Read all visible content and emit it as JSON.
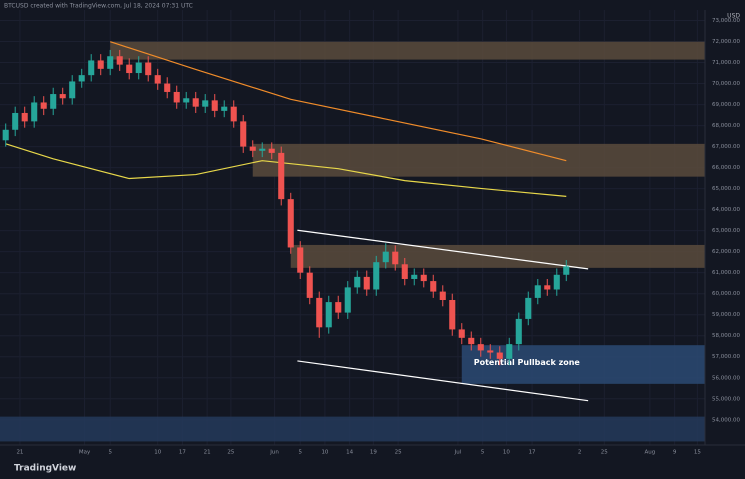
{
  "header": "BTCUSD created with TradingView.com, Jul 18, 2024 07:31 UTC",
  "footer": "TradingView",
  "chart_data": {
    "type": "candlestick",
    "currency": "USD",
    "up_color": "#26a69a",
    "down_color": "#ef5350",
    "open": [
      67300,
      67800,
      68600,
      68200,
      69100,
      68800,
      69500,
      69300,
      70100,
      70400,
      71100,
      70700,
      71300,
      70900,
      70500,
      71000,
      70400,
      70000,
      69600,
      69100,
      69300,
      68900,
      69200,
      68700,
      68900,
      68200,
      67000,
      66800,
      66900,
      66700,
      64500,
      62200,
      61000,
      59800,
      58400,
      59600,
      59100,
      60300,
      60800,
      60200,
      61500,
      62000,
      61400,
      60700,
      60900,
      60600,
      60100,
      59700,
      58300,
      57900,
      57600,
      57300,
      57200,
      56900,
      57600,
      58800,
      59800,
      60400,
      60200,
      60900
    ],
    "high": [
      68100,
      68900,
      68900,
      69400,
      69400,
      69800,
      69800,
      70400,
      70700,
      71400,
      71400,
      71600,
      71600,
      71200,
      71300,
      71300,
      70700,
      70300,
      69900,
      69600,
      69600,
      69500,
      69500,
      69200,
      69200,
      68500,
      67300,
      67200,
      67200,
      67000,
      64800,
      62500,
      61300,
      60100,
      59900,
      59900,
      60600,
      61100,
      61100,
      61800,
      62400,
      62300,
      61700,
      61200,
      61200,
      60900,
      60400,
      60000,
      58600,
      58200,
      57900,
      57600,
      57500,
      57900,
      59100,
      60100,
      60700,
      60700,
      61200,
      61600
    ],
    "low": [
      67000,
      67500,
      67900,
      67900,
      68500,
      68500,
      69000,
      69000,
      69800,
      70100,
      70400,
      70400,
      70600,
      70200,
      70200,
      70100,
      69700,
      69300,
      68800,
      68800,
      68600,
      68600,
      68400,
      68400,
      67900,
      66700,
      66500,
      66500,
      66400,
      64200,
      61900,
      60700,
      59500,
      57900,
      58100,
      58800,
      58800,
      60000,
      59900,
      59900,
      61200,
      61100,
      60400,
      60400,
      60300,
      59800,
      59400,
      58000,
      57600,
      57300,
      57000,
      56900,
      56600,
      56600,
      57300,
      58500,
      59500,
      59900,
      59900,
      60600
    ],
    "close": [
      67800,
      68600,
      68200,
      69100,
      68800,
      69500,
      69300,
      70100,
      70400,
      71100,
      70700,
      71300,
      70900,
      70500,
      71000,
      70400,
      70000,
      69600,
      69100,
      69300,
      68900,
      69200,
      68700,
      68900,
      68200,
      67000,
      66800,
      66900,
      66700,
      64500,
      62200,
      61000,
      59800,
      58400,
      59600,
      59100,
      60300,
      60800,
      60200,
      61500,
      62000,
      61400,
      60700,
      60900,
      60600,
      60100,
      59700,
      58300,
      57900,
      57600,
      57300,
      57200,
      56900,
      57600,
      58800,
      59800,
      60400,
      60200,
      60900,
      61300
    ],
    "xlim": [
      -0.6,
      73.6
    ],
    "ylim": [
      52800,
      73500
    ],
    "xticks": [
      {
        "value": 1.5,
        "label": "21"
      },
      {
        "value": 8.3,
        "label": "May"
      },
      {
        "value": 11,
        "label": "5"
      },
      {
        "value": 16,
        "label": "10"
      },
      {
        "value": 18.6,
        "label": "17"
      },
      {
        "value": 21.2,
        "label": "21"
      },
      {
        "value": 23.7,
        "label": "25"
      },
      {
        "value": 28.3,
        "label": "Jun"
      },
      {
        "value": 31,
        "label": "5"
      },
      {
        "value": 33.6,
        "label": "10"
      },
      {
        "value": 36.2,
        "label": "14"
      },
      {
        "value": 38.7,
        "label": "19"
      },
      {
        "value": 41.3,
        "label": "25"
      },
      {
        "value": 47.6,
        "label": "Jul"
      },
      {
        "value": 50.2,
        "label": "5"
      },
      {
        "value": 52.7,
        "label": "10"
      },
      {
        "value": 55.4,
        "label": "17"
      },
      {
        "value": 60.4,
        "label": "2"
      },
      {
        "value": 63,
        "label": "25"
      },
      {
        "value": 67.8,
        "label": "Aug"
      },
      {
        "value": 70.4,
        "label": "9"
      },
      {
        "value": 72.8,
        "label": "15"
      }
    ],
    "yticks": [
      {
        "value": 54000,
        "label": "54,000.00"
      },
      {
        "value": 55000,
        "label": "55,000.00"
      },
      {
        "value": 56000,
        "label": "56,000.00"
      },
      {
        "value": 57000,
        "label": "57,000.00"
      },
      {
        "value": 58000,
        "label": "58,000.00"
      },
      {
        "value": 59000,
        "label": "59,000.00"
      },
      {
        "value": 60000,
        "label": "60,000.00"
      },
      {
        "value": 61000,
        "label": "61,000.00"
      },
      {
        "value": 62000,
        "label": "62,000.00"
      },
      {
        "value": 63000,
        "label": "63,000.00"
      },
      {
        "value": 64000,
        "label": "64,000.00"
      },
      {
        "value": 65000,
        "label": "65,000.00"
      },
      {
        "value": 66000,
        "label": "66,000.00"
      },
      {
        "value": 67000,
        "label": "67,000.00"
      },
      {
        "value": 68000,
        "label": "68,000.00"
      },
      {
        "value": 69000,
        "label": "69,000.00"
      },
      {
        "value": 70000,
        "label": "70,000.00"
      },
      {
        "value": 71000,
        "label": "71,000.00"
      },
      {
        "value": 72000,
        "label": "72,000.00"
      },
      {
        "value": 73000,
        "label": "73,000.00"
      }
    ],
    "zones": [
      {
        "start": 11,
        "top": 71990,
        "bottom": 71140,
        "color": "#5a4b3c"
      },
      {
        "start": 26,
        "top": 67130,
        "bottom": 65570,
        "color": "#5a4b3c"
      },
      {
        "start": 30,
        "top": 62320,
        "bottom": 61230,
        "color": "#5a4b3c"
      },
      {
        "start": 48,
        "top": 57550,
        "bottom": 55710,
        "color": "#2b4a73",
        "label": "Potential Pullback zone"
      },
      {
        "start": -0.6,
        "top": 54150,
        "bottom": 52970,
        "color": "#24395a"
      }
    ],
    "overlays": [
      {
        "color": "#f08c2a",
        "x": [
          11,
          20,
          30,
          40,
          50,
          59
        ],
        "values": [
          71990,
          70670,
          69250,
          68310,
          67370,
          66330
        ]
      },
      {
        "color": "#e8d84a",
        "x": [
          0,
          5,
          13,
          20,
          27,
          35,
          42,
          50,
          59
        ],
        "values": [
          67130,
          66420,
          65480,
          65670,
          66330,
          65950,
          65380,
          65010,
          64630
        ]
      },
      {
        "color": "#ffffff",
        "x": [
          30.7,
          61.3
        ],
        "values": [
          63020,
          61180
        ]
      },
      {
        "color": "#ffffff",
        "x": [
          30.7,
          61.3
        ],
        "values": [
          56800,
          54910
        ]
      }
    ]
  }
}
